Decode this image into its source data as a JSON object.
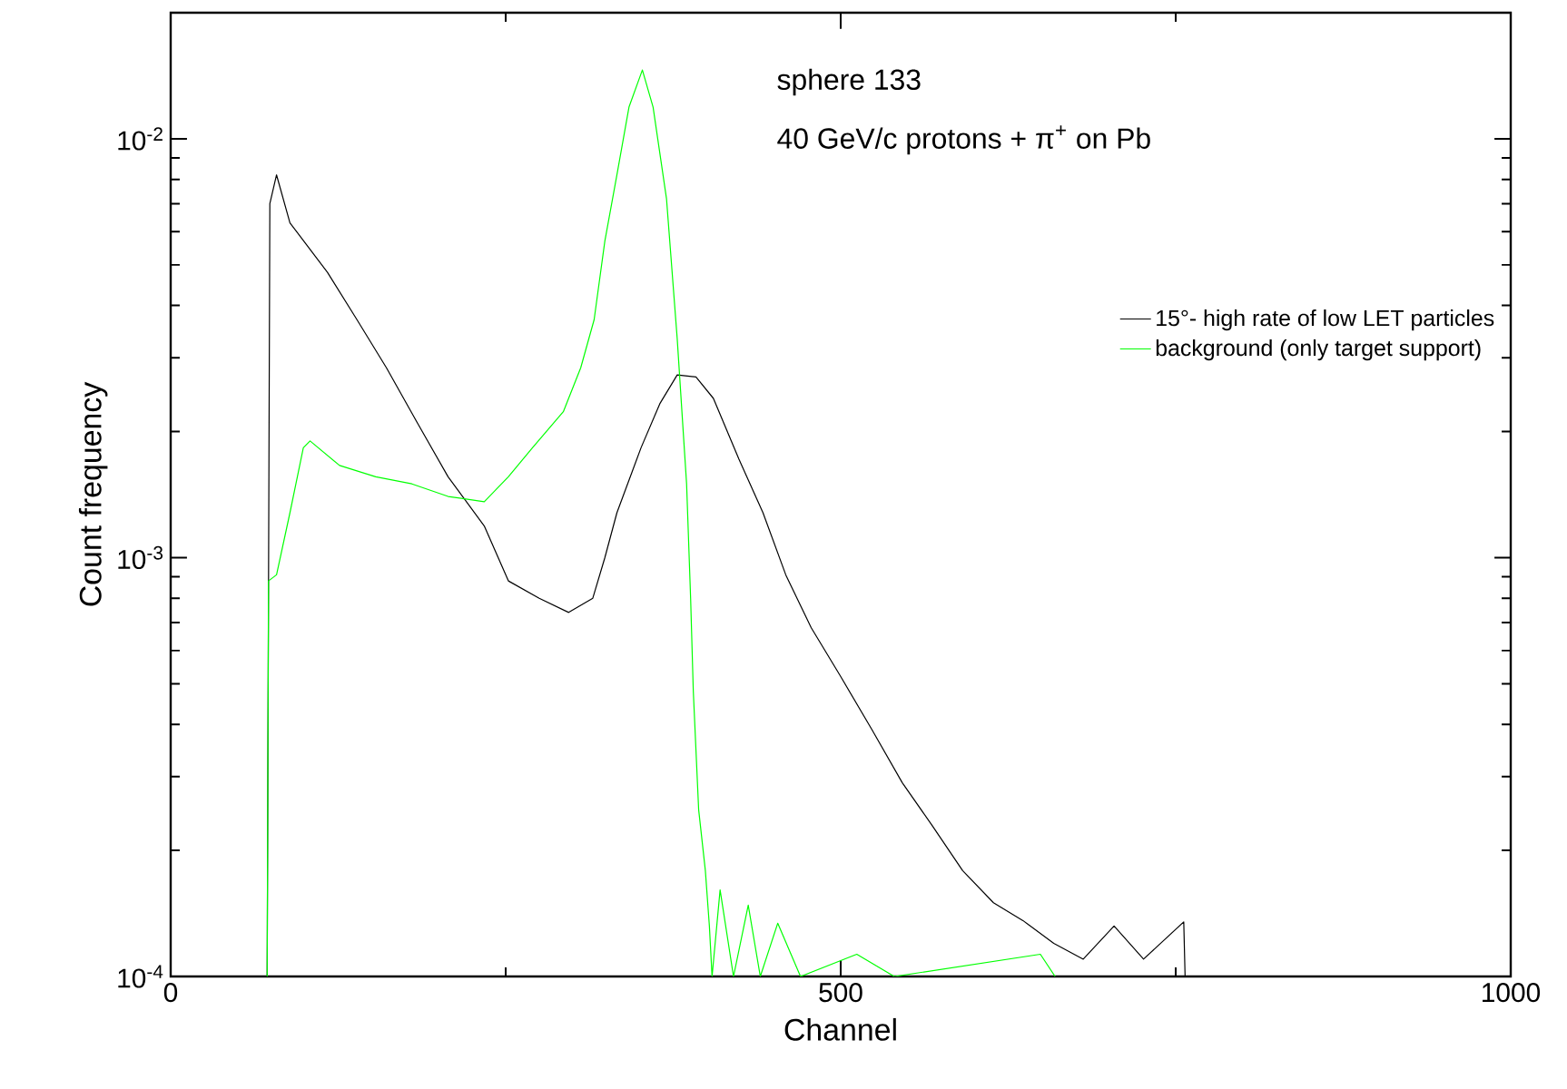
{
  "chart_data": {
    "type": "line",
    "xlabel": "Channel",
    "ylabel": "Count frequency",
    "annotations": [
      "sphere 133",
      "40 GeV/c protons + π$^{+}$ on Pb"
    ],
    "log": "y",
    "xlim": [
      0,
      1000
    ],
    "ylim": [
      0.0001,
      0.02
    ],
    "xticks": [
      0,
      {
        "value": 250,
        "label": null
      },
      500,
      {
        "value": 750,
        "label": null
      },
      1000
    ],
    "yticks": [
      {
        "value": 0.0001,
        "label": "10$^{-4}$"
      },
      {
        "value": 0.0002,
        "label": null
      },
      {
        "value": 0.0003,
        "label": null
      },
      {
        "value": 0.0004,
        "label": null
      },
      {
        "value": 0.0005,
        "label": null
      },
      {
        "value": 0.0006,
        "label": null
      },
      {
        "value": 0.0007,
        "label": null
      },
      {
        "value": 0.0008,
        "label": null
      },
      {
        "value": 0.0009,
        "label": null
      },
      {
        "value": 0.001,
        "label": "10$^{-3}$"
      },
      {
        "value": 0.002,
        "label": null
      },
      {
        "value": 0.003,
        "label": null
      },
      {
        "value": 0.004,
        "label": null
      },
      {
        "value": 0.005,
        "label": null
      },
      {
        "value": 0.006,
        "label": null
      },
      {
        "value": 0.007,
        "label": null
      },
      {
        "value": 0.008,
        "label": null
      },
      {
        "value": 0.009,
        "label": null
      },
      {
        "value": 0.01,
        "label": "10$^{-2}$"
      },
      {
        "value": 0.02,
        "label": null
      }
    ],
    "legend": "right",
    "marker": "none",
    "line_style": "solid",
    "series": [
      {
        "name": "15°- high rate of low LET particles",
        "color": "#000000",
        "x": [
          72,
          74,
          79,
          89,
          117,
          139,
          161,
          184,
          207,
          234,
          252,
          275,
          297,
          315,
          324,
          333,
          351,
          365,
          378,
          392,
          405,
          424,
          442,
          459,
          478,
          500,
          523,
          546,
          568,
          591,
          614,
          636,
          659,
          681,
          704,
          726,
          756,
          757
        ],
        "values": [
          0.0001,
          0.007,
          0.0082,
          0.0063,
          0.0048,
          0.0037,
          0.00284,
          0.0021,
          0.00156,
          0.00119,
          0.00088,
          0.0008,
          0.00074,
          0.0008,
          0.001,
          0.00128,
          0.00183,
          0.00233,
          0.00273,
          0.0027,
          0.0024,
          0.00172,
          0.00128,
          0.00091,
          0.00068,
          0.00052,
          0.00039,
          0.00029,
          0.00023,
          0.000179,
          0.00015,
          0.000136,
          0.00012,
          0.00011,
          0.000132,
          0.00011,
          0.000135,
          0.0001
        ]
      },
      {
        "name": "background (only target support)",
        "color": "#00ff00",
        "x": [
          72,
          73,
          79,
          89,
          99,
          104,
          126,
          153,
          180,
          207,
          234,
          252,
          270,
          293,
          306,
          316,
          324,
          333,
          342,
          352,
          360,
          370,
          378,
          385,
          388,
          390,
          394,
          399,
          402,
          404,
          410,
          420,
          431,
          440,
          453,
          470,
          512,
          540,
          649,
          660
        ],
        "values": [
          0.0001,
          0.00088,
          0.00091,
          0.00128,
          0.00183,
          0.0019,
          0.00166,
          0.00156,
          0.0015,
          0.0014,
          0.00136,
          0.00156,
          0.00183,
          0.00223,
          0.00284,
          0.0037,
          0.0057,
          0.0082,
          0.0119,
          0.0146,
          0.0119,
          0.0072,
          0.00333,
          0.0015,
          0.0008,
          0.00048,
          0.00025,
          0.000179,
          0.000132,
          0.0001,
          0.000161,
          0.0001,
          0.000148,
          0.0001,
          0.000134,
          0.0001,
          0.000113,
          0.0001,
          0.000113,
          0.0001
        ]
      }
    ]
  }
}
